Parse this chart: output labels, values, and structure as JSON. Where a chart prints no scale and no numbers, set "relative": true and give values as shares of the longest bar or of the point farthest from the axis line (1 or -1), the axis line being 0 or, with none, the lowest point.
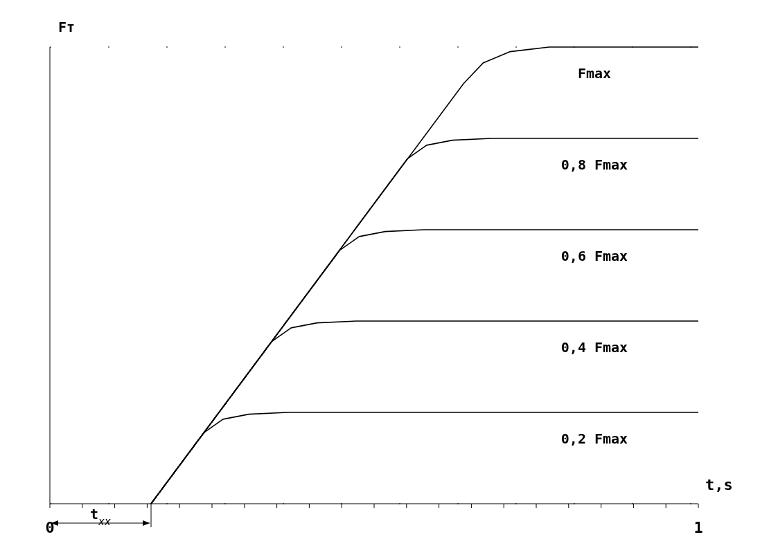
{
  "chart_data": {
    "type": "line",
    "relative": true,
    "xlabel": "t,s",
    "ylabel": "Fт",
    "annotations": [
      "t$_{xx}$"
    ],
    "marker": "none",
    "line_style": "solid",
    "grid": "y",
    "xlim": [
      0,
      1
    ],
    "xticks": [
      0,
      {
        "value": 0.05,
        "label": null
      },
      {
        "value": 0.1,
        "label": null
      },
      {
        "value": 0.15,
        "label": null
      },
      {
        "value": 0.2,
        "label": null
      },
      {
        "value": 0.25,
        "label": null
      },
      {
        "value": 0.3,
        "label": null
      },
      {
        "value": 0.35,
        "label": null
      },
      {
        "value": 0.4,
        "label": null
      },
      {
        "value": 0.45,
        "label": null
      },
      {
        "value": 0.5,
        "label": null
      },
      {
        "value": 0.55,
        "label": null
      },
      {
        "value": 0.6,
        "label": null
      },
      {
        "value": 0.65,
        "label": null
      },
      {
        "value": 0.7,
        "label": null
      },
      {
        "value": 0.75,
        "label": null
      },
      {
        "value": 0.8,
        "label": null
      },
      {
        "value": 0.85,
        "label": null
      },
      {
        "value": 0.9,
        "label": null
      },
      {
        "value": 0.95,
        "label": null
      },
      1
    ],
    "series": [
      {
        "name": "0,2 Fmax",
        "color": "#000000",
        "x": [
          0.156,
          0.237,
          0.267,
          0.307,
          0.367,
          1
        ],
        "values": [
          0,
          0.155,
          0.185,
          0.196,
          0.2,
          0.2
        ]
      },
      {
        "name": "0,4 Fmax",
        "color": "#000000",
        "x": [
          0.156,
          0.342,
          0.372,
          0.412,
          0.472,
          1
        ],
        "values": [
          0,
          0.355,
          0.385,
          0.396,
          0.4,
          0.4
        ]
      },
      {
        "name": "0,6 Fmax",
        "color": "#000000",
        "x": [
          0.156,
          0.447,
          0.477,
          0.517,
          0.577,
          1
        ],
        "values": [
          0,
          0.555,
          0.585,
          0.596,
          0.6,
          0.6
        ]
      },
      {
        "name": "0,8 Fmax",
        "color": "#000000",
        "x": [
          0.156,
          0.551,
          0.581,
          0.621,
          0.681,
          1
        ],
        "values": [
          0,
          0.755,
          0.785,
          0.796,
          0.8,
          0.8
        ]
      },
      {
        "name": "Fmax",
        "color": "#000000",
        "x": [
          0.156,
          0.638,
          0.668,
          0.71,
          0.77,
          1
        ],
        "values": [
          0,
          0.92,
          0.965,
          0.99,
          1,
          1
        ]
      }
    ]
  }
}
